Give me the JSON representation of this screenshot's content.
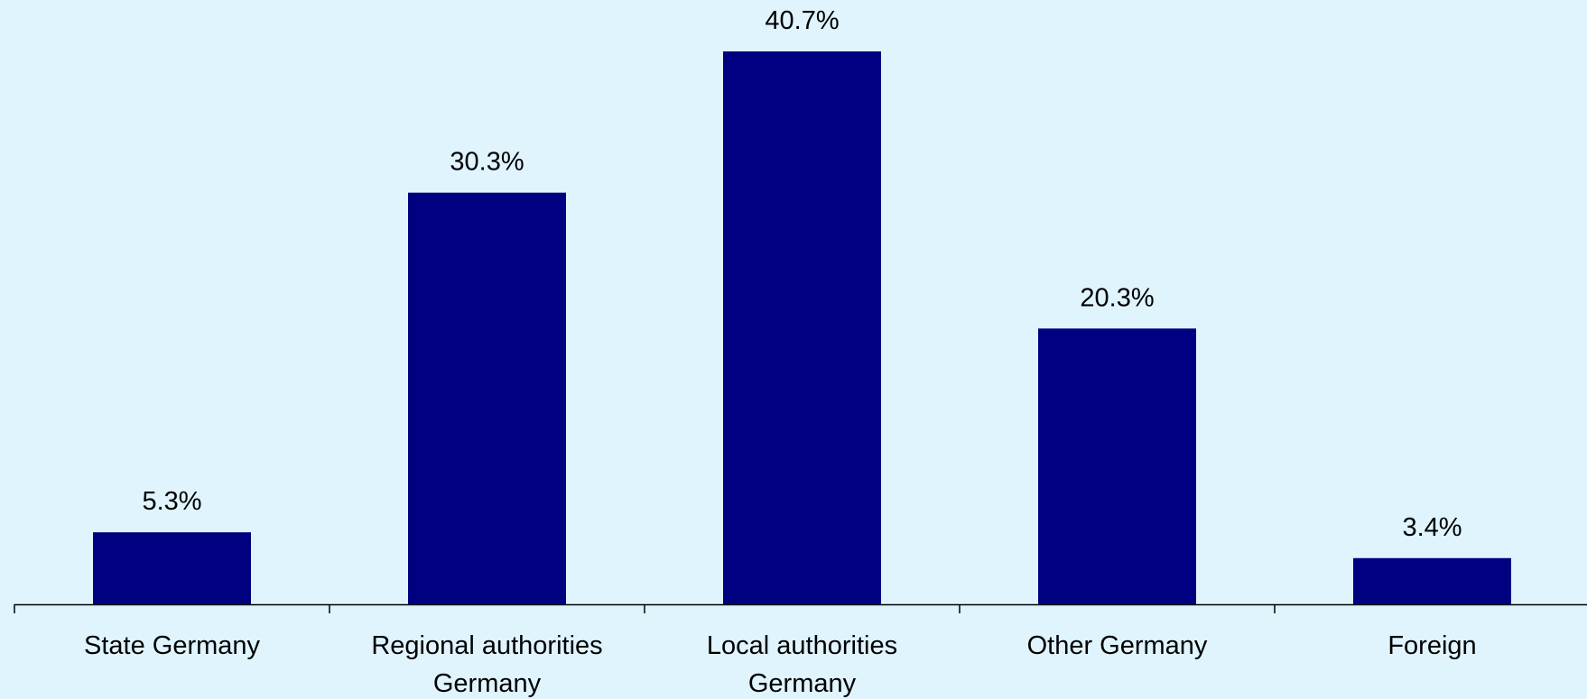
{
  "chart_data": {
    "type": "bar",
    "categories": [
      "State Germany",
      "Regional authorities\nGermany",
      "Local authorities\nGermany",
      "Other Germany",
      "Foreign"
    ],
    "values": [
      5.3,
      30.3,
      40.7,
      20.3,
      3.4
    ],
    "value_labels": [
      "5.3%",
      "30.3%",
      "40.7%",
      "20.3%",
      "3.4%"
    ],
    "color": "#000080"
  }
}
